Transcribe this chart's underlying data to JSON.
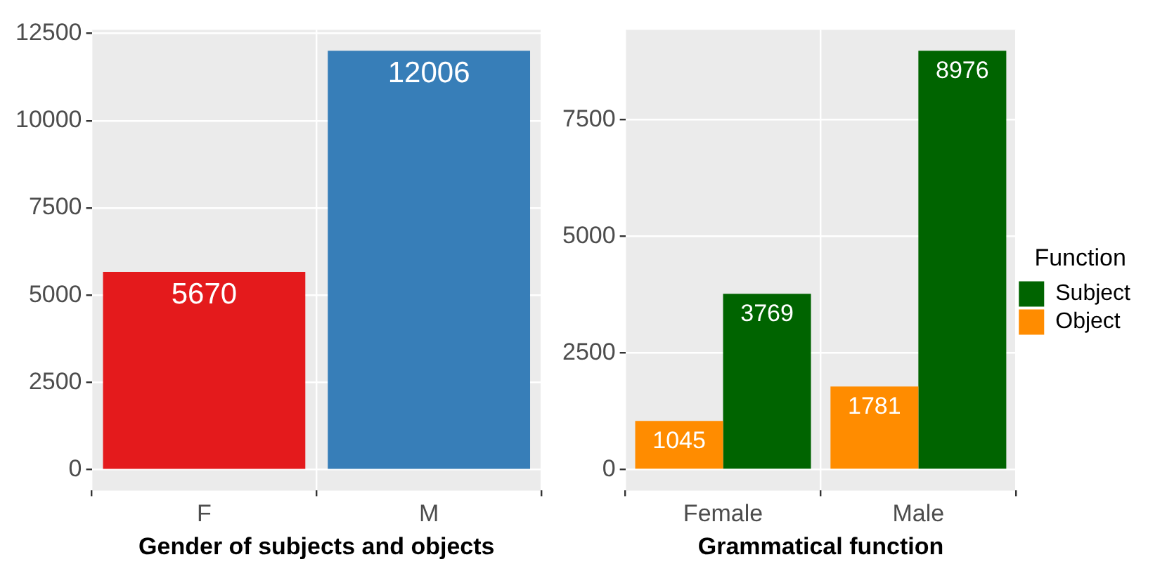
{
  "chart_data": [
    {
      "type": "bar",
      "xlabel": "Gender of subjects and objects",
      "categories": [
        "F",
        "M"
      ],
      "values": [
        5670,
        12006
      ],
      "colors": [
        "#e41a1c",
        "#377eb8"
      ],
      "ylim": [
        -600,
        12606
      ],
      "yticks": [
        0,
        2500,
        5000,
        7500,
        10000,
        12500
      ],
      "grid": true,
      "legend": false,
      "data_labels": true
    },
    {
      "type": "bar",
      "xlabel": "Grammatical function",
      "legend_title": "Function",
      "categories": [
        "Female",
        "Male"
      ],
      "series": [
        {
          "name": "Object",
          "color": "#ff8c00",
          "values": [
            1045,
            1781
          ]
        },
        {
          "name": "Subject",
          "color": "#006400",
          "values": [
            3769,
            8976
          ]
        }
      ],
      "ylim": [
        -449,
        9425
      ],
      "yticks": [
        0,
        2500,
        5000,
        7500
      ],
      "grid": true,
      "legend": "right",
      "data_labels": true
    }
  ]
}
